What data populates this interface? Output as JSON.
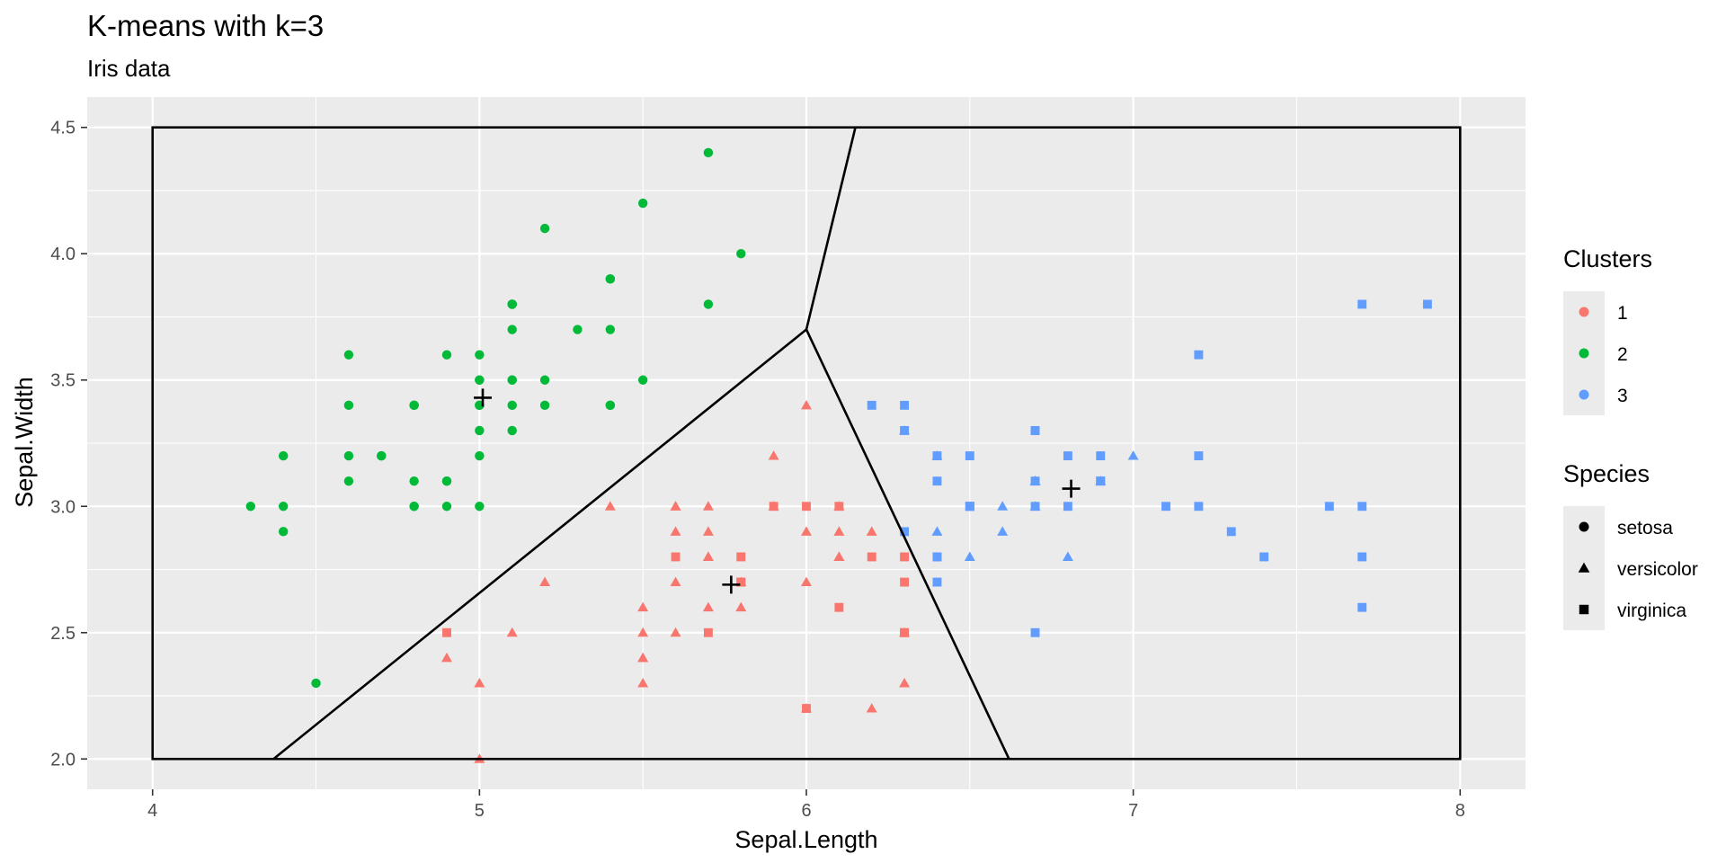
{
  "chart_data": {
    "type": "scatter",
    "title": "K-means with k=3",
    "subtitle": "Iris data",
    "xlabel": "Sepal.Length",
    "ylabel": "Sepal.Width",
    "xlim": [
      3.8,
      8.2
    ],
    "ylim": [
      1.88,
      4.62
    ],
    "x_ticks": [
      4,
      5,
      6,
      7,
      8
    ],
    "y_ticks": [
      2.0,
      2.5,
      3.0,
      3.5,
      4.0,
      4.5
    ],
    "x_tick_labels": [
      "4",
      "5",
      "6",
      "7",
      "8"
    ],
    "y_tick_labels": [
      "2.0",
      "2.5",
      "3.0",
      "3.5",
      "4.0",
      "4.5"
    ],
    "grid": true,
    "legend_placement": "right",
    "colors": {
      "panel_background": "#ebebeb",
      "grid": "#ffffff",
      "cluster_1": "#f8766d",
      "cluster_2": "#00ba38",
      "cluster_3": "#619cff",
      "voronoi_lines": "#000000",
      "centroids": "#000000"
    },
    "legends": [
      {
        "title": "Clusters",
        "items": [
          {
            "label": "1",
            "color": "#f8766d",
            "shape": "circle"
          },
          {
            "label": "2",
            "color": "#00ba38",
            "shape": "circle"
          },
          {
            "label": "3",
            "color": "#619cff",
            "shape": "circle"
          }
        ]
      },
      {
        "title": "Species",
        "items": [
          {
            "label": "setosa",
            "color": "#000000",
            "shape": "circle"
          },
          {
            "label": "versicolor",
            "color": "#000000",
            "shape": "triangle"
          },
          {
            "label": "virginica",
            "color": "#000000",
            "shape": "square"
          }
        ]
      }
    ],
    "centroids": [
      {
        "cluster": "1",
        "x": 5.77,
        "y": 2.69
      },
      {
        "cluster": "2",
        "x": 5.01,
        "y": 3.43
      },
      {
        "cluster": "3",
        "x": 6.81,
        "y": 3.07
      }
    ],
    "voronoi_segments": [
      {
        "x1": 4.37,
        "y1": 2.0,
        "x2": 6.0,
        "y2": 3.7
      },
      {
        "x1": 6.0,
        "y1": 3.7,
        "x2": 6.15,
        "y2": 4.5
      },
      {
        "x1": 6.0,
        "y1": 3.7,
        "x2": 6.62,
        "y2": 2.0
      }
    ],
    "bounding_box": {
      "xmin": 4,
      "xmax": 8,
      "ymin": 2.0,
      "ymax": 4.5
    },
    "series": [
      {
        "cluster": "2",
        "species": "setosa",
        "points": [
          [
            5.1,
            3.5
          ],
          [
            4.9,
            3.0
          ],
          [
            4.7,
            3.2
          ],
          [
            4.6,
            3.1
          ],
          [
            5.0,
            3.6
          ],
          [
            5.4,
            3.9
          ],
          [
            4.6,
            3.4
          ],
          [
            5.0,
            3.4
          ],
          [
            4.4,
            2.9
          ],
          [
            4.9,
            3.1
          ],
          [
            5.4,
            3.7
          ],
          [
            4.8,
            3.4
          ],
          [
            4.8,
            3.0
          ],
          [
            4.3,
            3.0
          ],
          [
            5.8,
            4.0
          ],
          [
            5.7,
            4.4
          ],
          [
            5.4,
            3.9
          ],
          [
            5.1,
            3.5
          ],
          [
            5.7,
            3.8
          ],
          [
            5.1,
            3.8
          ],
          [
            5.4,
            3.4
          ],
          [
            5.1,
            3.7
          ],
          [
            4.6,
            3.6
          ],
          [
            5.1,
            3.3
          ],
          [
            4.8,
            3.4
          ],
          [
            5.0,
            3.0
          ],
          [
            5.0,
            3.4
          ],
          [
            5.2,
            3.5
          ],
          [
            5.2,
            3.4
          ],
          [
            4.7,
            3.2
          ],
          [
            4.8,
            3.1
          ],
          [
            5.4,
            3.4
          ],
          [
            5.2,
            4.1
          ],
          [
            5.5,
            4.2
          ],
          [
            4.9,
            3.1
          ],
          [
            5.0,
            3.2
          ],
          [
            5.5,
            3.5
          ],
          [
            4.9,
            3.6
          ],
          [
            4.4,
            3.0
          ],
          [
            5.1,
            3.4
          ],
          [
            5.0,
            3.5
          ],
          [
            4.5,
            2.3
          ],
          [
            4.4,
            3.2
          ],
          [
            5.0,
            3.5
          ],
          [
            5.1,
            3.8
          ],
          [
            4.8,
            3.0
          ],
          [
            5.1,
            3.8
          ],
          [
            4.6,
            3.2
          ],
          [
            5.3,
            3.7
          ],
          [
            5.0,
            3.3
          ]
        ]
      },
      {
        "cluster": "3",
        "species": "versicolor",
        "points": [
          [
            7.0,
            3.2
          ],
          [
            6.4,
            3.2
          ],
          [
            6.9,
            3.1
          ],
          [
            6.3,
            3.3
          ],
          [
            6.6,
            2.9
          ],
          [
            6.6,
            3.0
          ],
          [
            6.8,
            2.8
          ],
          [
            6.7,
            3.0
          ],
          [
            6.7,
            3.1
          ],
          [
            6.5,
            2.8
          ],
          [
            6.4,
            2.9
          ],
          [
            6.7,
            3.1
          ]
        ]
      },
      {
        "cluster": "1",
        "species": "versicolor",
        "points": [
          [
            5.5,
            2.3
          ],
          [
            5.7,
            2.8
          ],
          [
            4.9,
            2.4
          ],
          [
            5.2,
            2.7
          ],
          [
            5.0,
            2.0
          ],
          [
            5.9,
            3.0
          ],
          [
            6.0,
            2.2
          ],
          [
            6.1,
            2.9
          ],
          [
            5.6,
            2.9
          ],
          [
            5.6,
            3.0
          ],
          [
            5.8,
            2.7
          ],
          [
            6.2,
            2.2
          ],
          [
            5.6,
            2.5
          ],
          [
            5.9,
            3.2
          ],
          [
            6.1,
            2.8
          ],
          [
            6.3,
            2.5
          ],
          [
            6.1,
            2.8
          ],
          [
            6.0,
            2.9
          ],
          [
            5.7,
            2.6
          ],
          [
            5.5,
            2.4
          ],
          [
            5.5,
            2.4
          ],
          [
            5.8,
            2.7
          ],
          [
            6.0,
            2.7
          ],
          [
            5.4,
            3.0
          ],
          [
            6.0,
            3.4
          ],
          [
            6.3,
            2.3
          ],
          [
            5.6,
            3.0
          ],
          [
            5.5,
            2.5
          ],
          [
            5.5,
            2.6
          ],
          [
            6.1,
            3.0
          ],
          [
            5.8,
            2.6
          ],
          [
            5.0,
            2.3
          ],
          [
            5.6,
            2.7
          ],
          [
            5.7,
            3.0
          ],
          [
            5.7,
            2.9
          ],
          [
            6.2,
            2.9
          ],
          [
            5.1,
            2.5
          ],
          [
            5.7,
            2.8
          ]
        ]
      },
      {
        "cluster": "1",
        "species": "virginica",
        "points": [
          [
            5.8,
            2.7
          ],
          [
            4.9,
            2.5
          ],
          [
            5.7,
            2.5
          ],
          [
            5.8,
            2.8
          ],
          [
            6.0,
            2.2
          ],
          [
            5.6,
            2.8
          ],
          [
            6.3,
            2.7
          ],
          [
            6.1,
            3.0
          ],
          [
            6.3,
            2.8
          ],
          [
            6.0,
            3.0
          ],
          [
            5.8,
            2.7
          ],
          [
            6.3,
            2.5
          ],
          [
            6.2,
            2.8
          ],
          [
            5.9,
            3.0
          ],
          [
            6.1,
            2.6
          ],
          [
            6.3,
            2.5
          ]
        ]
      },
      {
        "cluster": "3",
        "species": "virginica",
        "points": [
          [
            6.3,
            3.3
          ],
          [
            7.1,
            3.0
          ],
          [
            6.3,
            2.9
          ],
          [
            6.5,
            3.0
          ],
          [
            7.6,
            3.0
          ],
          [
            7.3,
            2.9
          ],
          [
            6.7,
            2.5
          ],
          [
            7.2,
            3.6
          ],
          [
            6.5,
            3.2
          ],
          [
            6.4,
            2.7
          ],
          [
            6.8,
            3.0
          ],
          [
            6.4,
            3.2
          ],
          [
            6.5,
            3.0
          ],
          [
            7.7,
            3.8
          ],
          [
            7.7,
            2.6
          ],
          [
            6.9,
            3.2
          ],
          [
            7.7,
            2.8
          ],
          [
            6.7,
            3.3
          ],
          [
            7.2,
            3.2
          ],
          [
            6.4,
            2.8
          ],
          [
            7.2,
            3.0
          ],
          [
            7.4,
            2.8
          ],
          [
            7.9,
            3.8
          ],
          [
            6.4,
            2.8
          ],
          [
            7.7,
            3.0
          ],
          [
            6.3,
            3.4
          ],
          [
            6.4,
            3.1
          ],
          [
            6.9,
            3.1
          ],
          [
            6.7,
            3.1
          ],
          [
            6.9,
            3.1
          ],
          [
            6.8,
            3.2
          ],
          [
            6.7,
            3.3
          ],
          [
            6.7,
            3.0
          ],
          [
            6.5,
            3.0
          ],
          [
            6.2,
            3.4
          ]
        ]
      }
    ]
  }
}
